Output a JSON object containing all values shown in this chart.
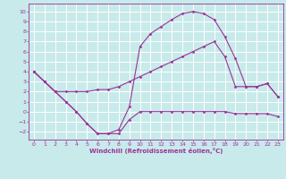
{
  "title": "",
  "xlabel": "Windchill (Refroidissement éolien,°C)",
  "ylabel": "",
  "xlim": [
    -0.5,
    23.5
  ],
  "ylim": [
    -2.8,
    10.8
  ],
  "xticks": [
    0,
    1,
    2,
    3,
    4,
    5,
    6,
    7,
    8,
    9,
    10,
    11,
    12,
    13,
    14,
    15,
    16,
    17,
    18,
    19,
    20,
    21,
    22,
    23
  ],
  "yticks": [
    -2,
    -1,
    0,
    1,
    2,
    3,
    4,
    5,
    6,
    7,
    8,
    9,
    10
  ],
  "bg_color": "#c8eaea",
  "grid_color": "#ffffff",
  "line_color": "#993399",
  "line_width": 0.8,
  "marker": "D",
  "marker_size": 1.5,
  "lines": [
    [
      4.0,
      3.0,
      2.0,
      1.0,
      0.0,
      -1.2,
      -2.2,
      -2.2,
      -2.2,
      -0.8,
      0.0,
      0.0,
      0.0,
      0.0,
      0.0,
      0.0,
      0.0,
      0.0,
      0.0,
      -0.2,
      -0.2,
      -0.2,
      -0.2,
      -0.5
    ],
    [
      4.0,
      3.0,
      2.0,
      2.0,
      2.0,
      2.0,
      2.2,
      2.2,
      2.5,
      3.0,
      3.5,
      4.0,
      4.5,
      5.0,
      5.5,
      6.0,
      6.5,
      7.0,
      5.5,
      2.5,
      2.5,
      2.5,
      2.8,
      1.5
    ],
    [
      4.0,
      3.0,
      2.0,
      1.0,
      0.0,
      -1.2,
      -2.2,
      -2.2,
      -1.8,
      0.5,
      6.5,
      7.8,
      8.5,
      9.2,
      9.8,
      10.0,
      9.8,
      9.2,
      7.5,
      5.3,
      2.5,
      2.5,
      2.8,
      1.5
    ]
  ],
  "xlabel_fontsize": 5.0,
  "tick_fontsize": 4.5
}
